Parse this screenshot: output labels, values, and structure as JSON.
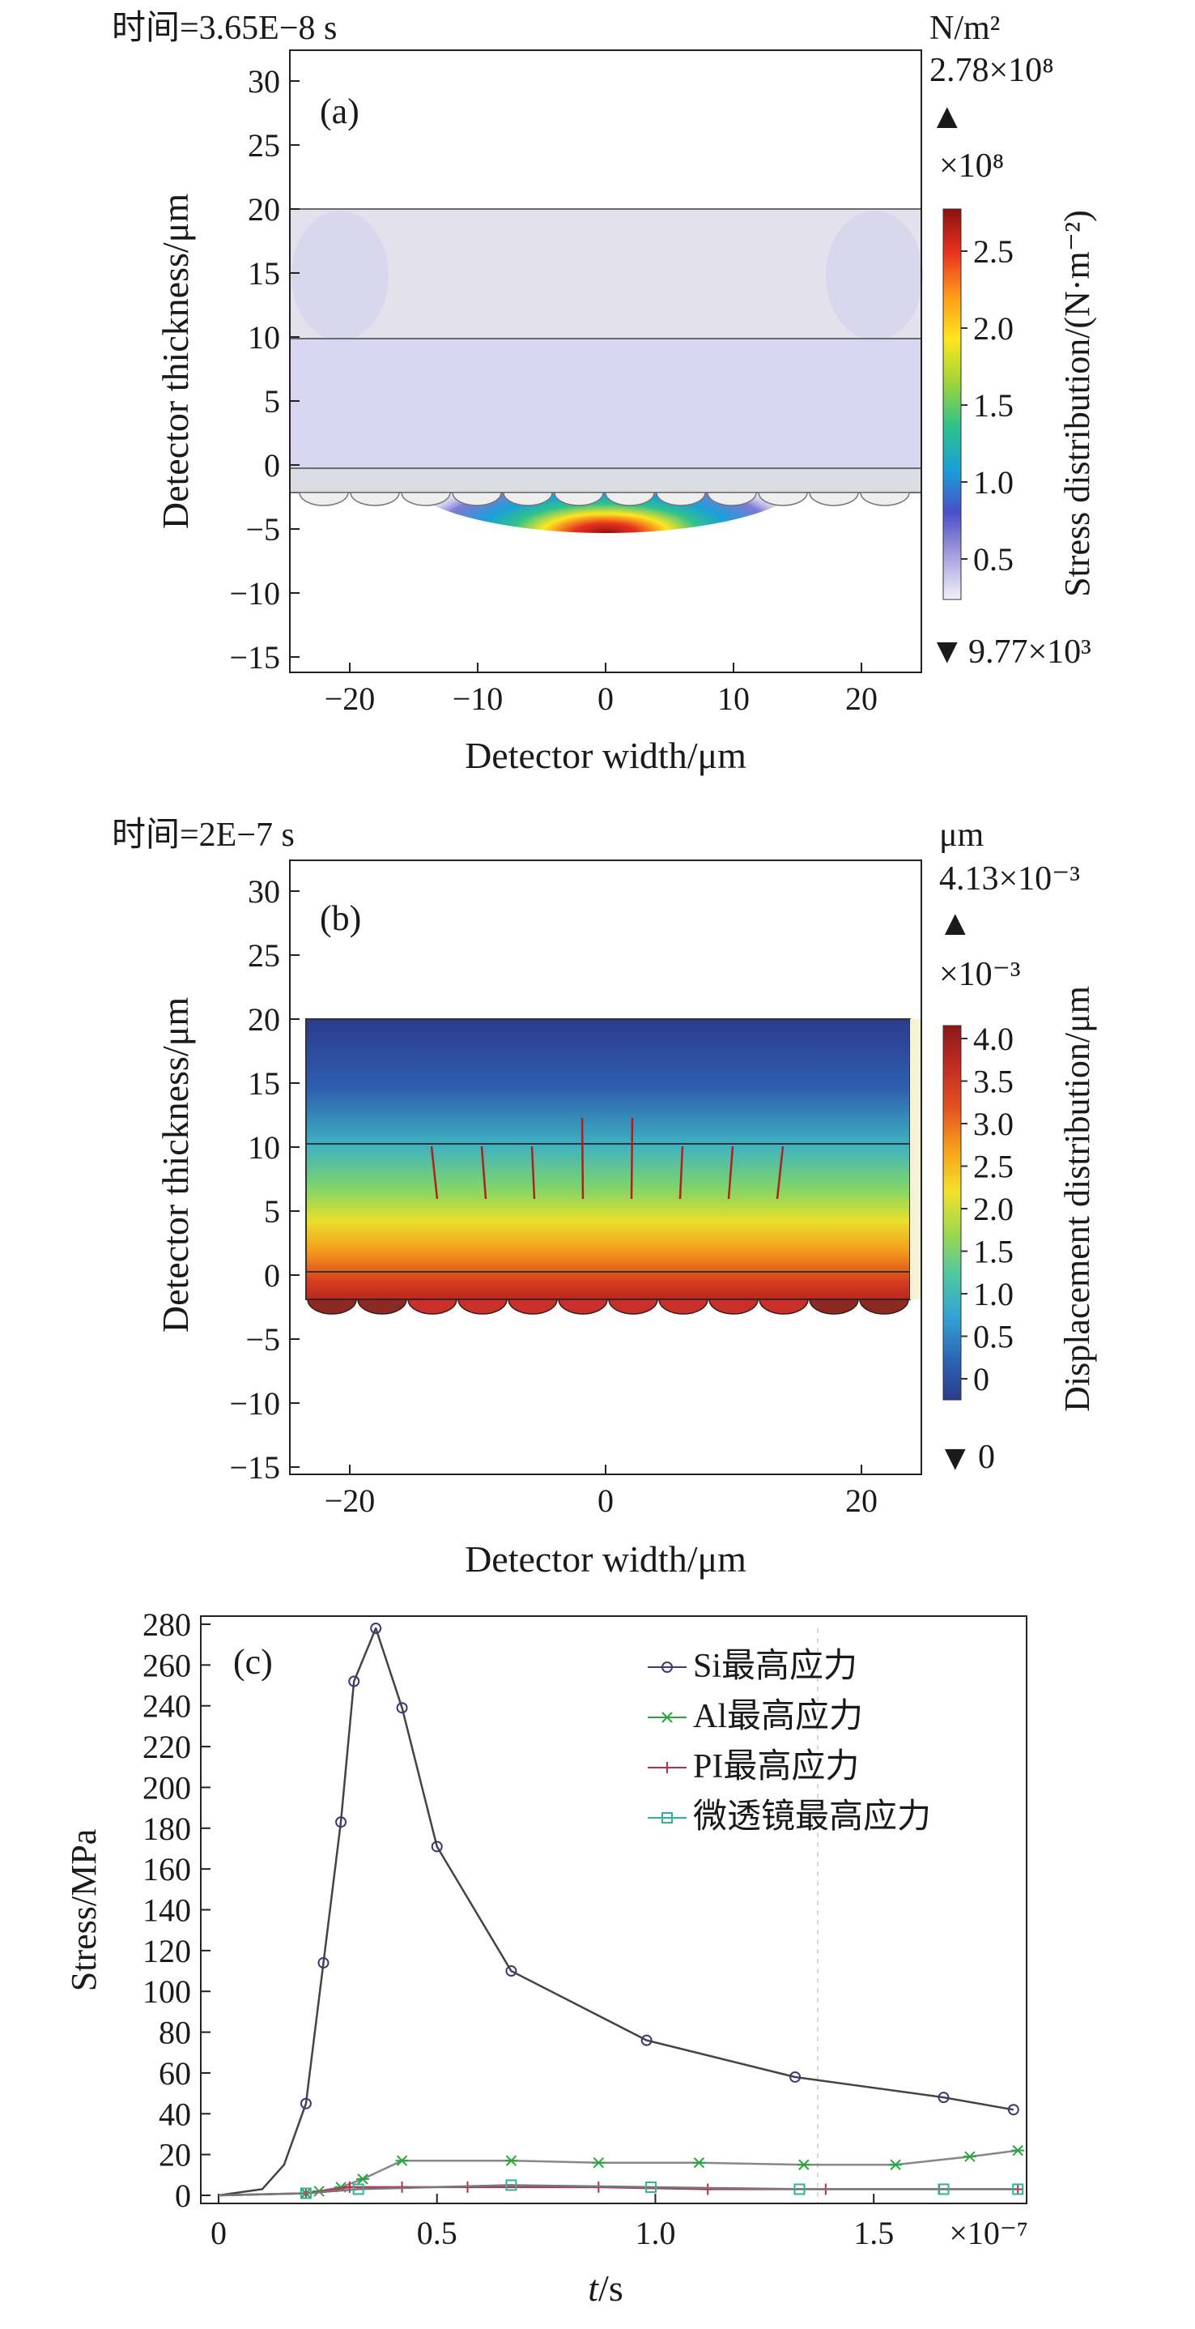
{
  "colors": {
    "colormap": [
      "#f2f0fa",
      "#a7a2df",
      "#4a4fc6",
      "#1aa0d8",
      "#2fc28c",
      "#9ed538",
      "#ffe61f",
      "#ff9a1a",
      "#e8321e",
      "#8c1010"
    ],
    "disp_colormap": [
      "#2c3b8c",
      "#2b67b6",
      "#33a2d6",
      "#4fc7a3",
      "#9bd94d",
      "#f4e12b",
      "#f7a21c",
      "#e55321",
      "#c22c23",
      "#8c1a1a"
    ],
    "stress_fill_glass": "#e6e6ea",
    "stress_fill_material": "#dcdaf0",
    "series": {
      "si": "#3a3a78",
      "al": "#2aa640",
      "pi": "#c0284a",
      "lens": "#2ab598"
    }
  },
  "panel_a": {
    "time_label": "时间=3.65E−8 s",
    "panel_label": "(a)",
    "xlabel": "Detector width/μm",
    "ylabel": "Detector thickness/μm",
    "xticks": [
      "−20",
      "−10",
      "0",
      "10",
      "20"
    ],
    "yticks": [
      "30",
      "25",
      "20",
      "15",
      "10",
      "5",
      "0",
      "−5",
      "−10",
      "−15"
    ],
    "unit": "N/m²",
    "max_label": "2.78×10⁸",
    "max_marker": "▲",
    "scale_label": "×10⁸",
    "colorbar_ticks": [
      "2.5",
      "2.0",
      "1.5",
      "1.0",
      "0.5"
    ],
    "colorbar_label": "Stress distribution/(N·m⁻²)",
    "min_marker": "▼",
    "min_label": "9.77×10³"
  },
  "panel_b": {
    "time_label": "时间=2E−7 s",
    "panel_label": "(b)",
    "xlabel": "Detector width/μm",
    "ylabel": "Detector thickness/μm",
    "xticks": [
      "−20",
      "0",
      "20"
    ],
    "yticks": [
      "30",
      "25",
      "20",
      "15",
      "10",
      "5",
      "0",
      "−5",
      "−10",
      "−15"
    ],
    "unit": "μm",
    "max_label": "4.13×10⁻³",
    "max_marker": "▲",
    "scale_label": "×10⁻³",
    "colorbar_ticks": [
      "4.0",
      "3.5",
      "3.0",
      "2.5",
      "2.0",
      "1.5",
      "1.0",
      "0.5",
      "0"
    ],
    "colorbar_label": "Displacement distribution/μm",
    "min_marker": "▼",
    "min_label": "0"
  },
  "chart_data": {
    "type": "line",
    "panel_label": "(c)",
    "xlabel_italic": "t",
    "xlabel_rest": "/s",
    "ylabel": "Stress/MPa",
    "x_multiplier": "×10⁻⁷",
    "xlim": [
      0,
      1.85
    ],
    "ylim": [
      0,
      280
    ],
    "xticks": [
      "0",
      "0.5",
      "1.0",
      "1.5"
    ],
    "yticks": [
      "0",
      "20",
      "40",
      "60",
      "80",
      "100",
      "120",
      "140",
      "160",
      "180",
      "200",
      "220",
      "240",
      "260",
      "280"
    ],
    "legend_position": "top-right",
    "series": [
      {
        "name": "Si最高应力",
        "marker": "circle",
        "x": [
          0,
          0.1,
          0.15,
          0.2,
          0.24,
          0.28,
          0.31,
          0.36,
          0.42,
          0.5,
          0.67,
          0.98,
          1.32,
          1.66,
          1.82
        ],
        "y": [
          0,
          3,
          15,
          45,
          114,
          183,
          252,
          278,
          239,
          171,
          110,
          76,
          58,
          48,
          42
        ]
      },
      {
        "name": "Al最高应力",
        "marker": "star",
        "x": [
          0,
          0.2,
          0.23,
          0.28,
          0.33,
          0.42,
          0.67,
          0.87,
          1.1,
          1.34,
          1.55,
          1.72,
          1.83
        ],
        "y": [
          0,
          1,
          2,
          4,
          8,
          17,
          17,
          16,
          16,
          15,
          15,
          19,
          22
        ]
      },
      {
        "name": "PI最高应力",
        "marker": "plus",
        "x": [
          0,
          0.2,
          0.3,
          0.42,
          0.57,
          0.87,
          1.12,
          1.39,
          1.65,
          1.83
        ],
        "y": [
          0,
          1,
          4,
          4,
          4,
          4,
          3,
          3,
          3,
          3
        ]
      },
      {
        "name": "微透镜最高应力",
        "marker": "square",
        "x": [
          0,
          0.2,
          0.32,
          0.67,
          0.99,
          1.33,
          1.66,
          1.83
        ],
        "y": [
          0,
          1,
          3,
          5,
          4,
          3,
          3,
          3
        ]
      }
    ]
  }
}
